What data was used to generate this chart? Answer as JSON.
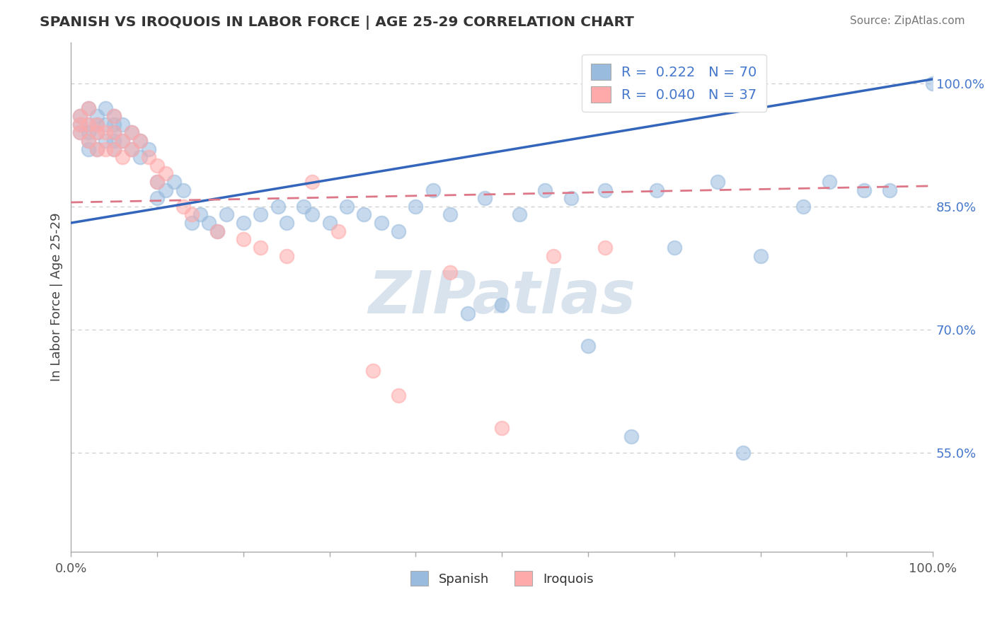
{
  "title": "SPANISH VS IROQUOIS IN LABOR FORCE | AGE 25-29 CORRELATION CHART",
  "source": "Source: ZipAtlas.com",
  "ylabel": "In Labor Force | Age 25-29",
  "y_tick_labels_right": [
    "55.0%",
    "70.0%",
    "85.0%",
    "100.0%"
  ],
  "y_tick_positions_right": [
    0.55,
    0.7,
    0.85,
    1.0
  ],
  "xlim": [
    0.0,
    1.0
  ],
  "ylim": [
    0.43,
    1.05
  ],
  "legend_label1": "Spanish",
  "legend_label2": "Iroquois",
  "R1": "0.222",
  "N1": "70",
  "R2": "0.040",
  "N2": "37",
  "blue_color": "#99BBDD",
  "pink_color": "#FFAAAA",
  "trend_blue": "#3366BB",
  "trend_pink": "#DD7788",
  "background": "#FFFFFF",
  "text_color_blue": "#4477CC",
  "watermark_text": "ZIPatlas",
  "watermark_color": "#C8D8E8",
  "grid_color": "#CCCCCC",
  "title_color": "#333333",
  "source_color": "#777777",
  "spanish_x": [
    0.01,
    0.01,
    0.01,
    0.02,
    0.02,
    0.02,
    0.02,
    0.02,
    0.03,
    0.03,
    0.03,
    0.03,
    0.04,
    0.04,
    0.04,
    0.05,
    0.05,
    0.05,
    0.05,
    0.05,
    0.06,
    0.06,
    0.07,
    0.07,
    0.08,
    0.08,
    0.09,
    0.1,
    0.1,
    0.11,
    0.12,
    0.13,
    0.14,
    0.15,
    0.16,
    0.17,
    0.18,
    0.2,
    0.22,
    0.24,
    0.25,
    0.27,
    0.28,
    0.3,
    0.32,
    0.34,
    0.36,
    0.38,
    0.4,
    0.42,
    0.44,
    0.46,
    0.48,
    0.5,
    0.52,
    0.55,
    0.58,
    0.6,
    0.62,
    0.65,
    0.68,
    0.7,
    0.75,
    0.78,
    0.8,
    0.85,
    0.88,
    0.92,
    0.95,
    1.0
  ],
  "spanish_y": [
    0.96,
    0.95,
    0.94,
    0.97,
    0.95,
    0.94,
    0.93,
    0.92,
    0.96,
    0.95,
    0.94,
    0.92,
    0.97,
    0.95,
    0.93,
    0.96,
    0.95,
    0.94,
    0.93,
    0.92,
    0.95,
    0.93,
    0.94,
    0.92,
    0.93,
    0.91,
    0.92,
    0.88,
    0.86,
    0.87,
    0.88,
    0.87,
    0.83,
    0.84,
    0.83,
    0.82,
    0.84,
    0.83,
    0.84,
    0.85,
    0.83,
    0.85,
    0.84,
    0.83,
    0.85,
    0.84,
    0.83,
    0.82,
    0.85,
    0.87,
    0.84,
    0.72,
    0.86,
    0.73,
    0.84,
    0.87,
    0.86,
    0.68,
    0.87,
    0.57,
    0.87,
    0.8,
    0.88,
    0.55,
    0.79,
    0.85,
    0.88,
    0.87,
    0.87,
    1.0
  ],
  "iroquois_x": [
    0.01,
    0.01,
    0.01,
    0.02,
    0.02,
    0.02,
    0.03,
    0.03,
    0.03,
    0.04,
    0.04,
    0.05,
    0.05,
    0.05,
    0.06,
    0.06,
    0.07,
    0.07,
    0.08,
    0.09,
    0.1,
    0.1,
    0.11,
    0.13,
    0.14,
    0.17,
    0.2,
    0.22,
    0.25,
    0.28,
    0.31,
    0.35,
    0.38,
    0.44,
    0.5,
    0.56,
    0.62
  ],
  "iroquois_y": [
    0.96,
    0.95,
    0.94,
    0.97,
    0.95,
    0.93,
    0.95,
    0.94,
    0.92,
    0.94,
    0.92,
    0.96,
    0.94,
    0.92,
    0.93,
    0.91,
    0.94,
    0.92,
    0.93,
    0.91,
    0.9,
    0.88,
    0.89,
    0.85,
    0.84,
    0.82,
    0.81,
    0.8,
    0.79,
    0.88,
    0.82,
    0.65,
    0.62,
    0.77,
    0.58,
    0.79,
    0.8
  ],
  "blue_trendline_start_y": 0.83,
  "blue_trendline_end_y": 1.005,
  "pink_trendline_start_y": 0.855,
  "pink_trendline_end_y": 0.875
}
